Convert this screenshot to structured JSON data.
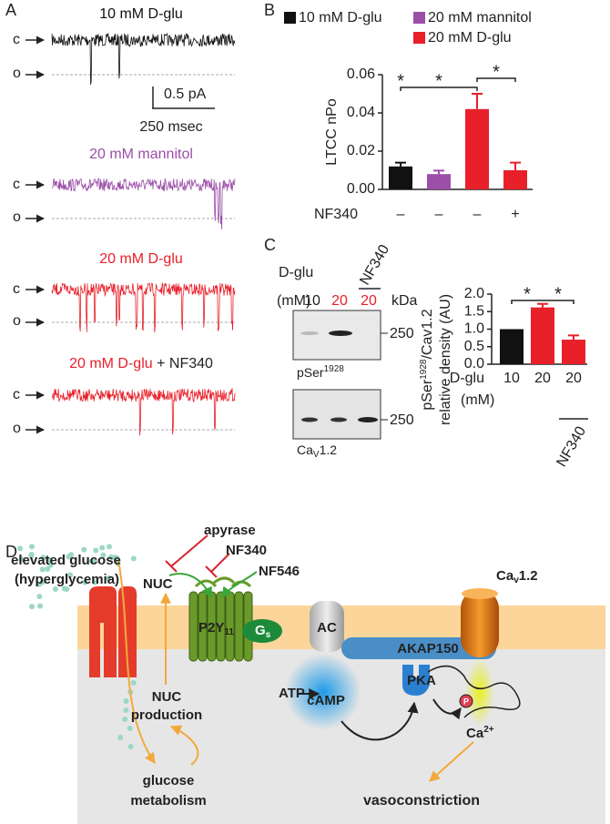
{
  "panel_labels": [
    "A",
    "B",
    "C",
    "D"
  ],
  "panel_a": {
    "traces": [
      {
        "title": "10 mM D-glu",
        "color": "#111111"
      },
      {
        "title": "20 mM mannitol",
        "color": "#9b4fa8"
      },
      {
        "title": "20 mM D-glu",
        "color": "#e8202a"
      },
      {
        "title": "20 mM D-glu",
        "title_suffix": " + NF340",
        "color": "#e8202a"
      }
    ],
    "closed_label": "c",
    "open_label": "o",
    "scale_y": "0.5 pA",
    "scale_x": "250 msec"
  },
  "chart_data": [
    {
      "type": "bar",
      "y_label": "LTCC nPo",
      "x_label": "NF340",
      "categories": [
        "–",
        "–",
        "–",
        "+"
      ],
      "values": [
        0.012,
        0.008,
        0.042,
        0.01
      ],
      "errors": [
        0.002,
        0.0018,
        0.008,
        0.004
      ],
      "colors": [
        "#111111",
        "#9b4fa8",
        "#e8202a",
        "#e8202a"
      ],
      "legend": [
        {
          "name": "10 mM D-glu",
          "color": "#111111"
        },
        {
          "name": "20 mM mannitol",
          "color": "#9b4fa8"
        },
        {
          "name": "20 mM D-glu",
          "color": "#e8202a"
        }
      ],
      "ylim": [
        0,
        0.06
      ],
      "yticks": [
        {
          "value": 0,
          "label": "0.00"
        },
        0.02,
        0.04,
        0.06
      ],
      "annotations": [
        "*",
        "*",
        "*"
      ]
    },
    {
      "type": "bar",
      "y_label_parts": [
        "pSer",
        "1928",
        "/Cav1.2"
      ],
      "y_label_line2": "relative density (AU)",
      "x_label": "D-glu",
      "x_unit": "(mM)",
      "group_label": "NF340",
      "categories": [
        "10",
        "20",
        "20"
      ],
      "values": [
        1.0,
        1.62,
        0.7
      ],
      "errors": [
        0,
        0.1,
        0.12
      ],
      "colors": [
        "#111111",
        "#e8202a",
        "#e8202a"
      ],
      "ylim": [
        0,
        2
      ],
      "yticks": [
        {
          "value": 0,
          "label": "0.0"
        },
        0.5,
        {
          "value": 1,
          "label": "1.0"
        },
        1.5,
        {
          "value": 2,
          "label": "2.0"
        }
      ],
      "annotations": [
        "*",
        "*"
      ]
    }
  ],
  "blot": {
    "row_label": "D-glu",
    "unit": "(mM)",
    "lanes": [
      "10",
      "20",
      "20"
    ],
    "treatment": "NF340",
    "kda": "kDa",
    "markers": [
      "250",
      "250"
    ],
    "blots": [
      {
        "label": "pSer",
        "sup": "1928"
      },
      {
        "label": "Ca",
        "sub": "V",
        "rest": "1.2"
      }
    ]
  },
  "diagram": {
    "glucose": [
      "elevated glucose",
      "(hyperglycemia)"
    ],
    "nuc": "NUC",
    "inhibitors": [
      "apyrase",
      "NF340"
    ],
    "agonist": "NF546",
    "nuc_production": [
      "NUC",
      "production"
    ],
    "metabolism": [
      "glucose",
      "metabolism"
    ],
    "receptor": {
      "name": "P2Y",
      "sub": "11"
    },
    "gs": {
      "name": "G",
      "sub": "s"
    },
    "ac": "AC",
    "atp": "ATP",
    "camp": "cAMP",
    "akap": "AKAP150",
    "pka": "PKA",
    "phospho": "P",
    "calcium": {
      "name": "Ca",
      "sup": "2+"
    },
    "channel": {
      "name": "Ca",
      "sub": "v",
      "rest": "1.2"
    },
    "outcome": "vasoconstriction"
  }
}
